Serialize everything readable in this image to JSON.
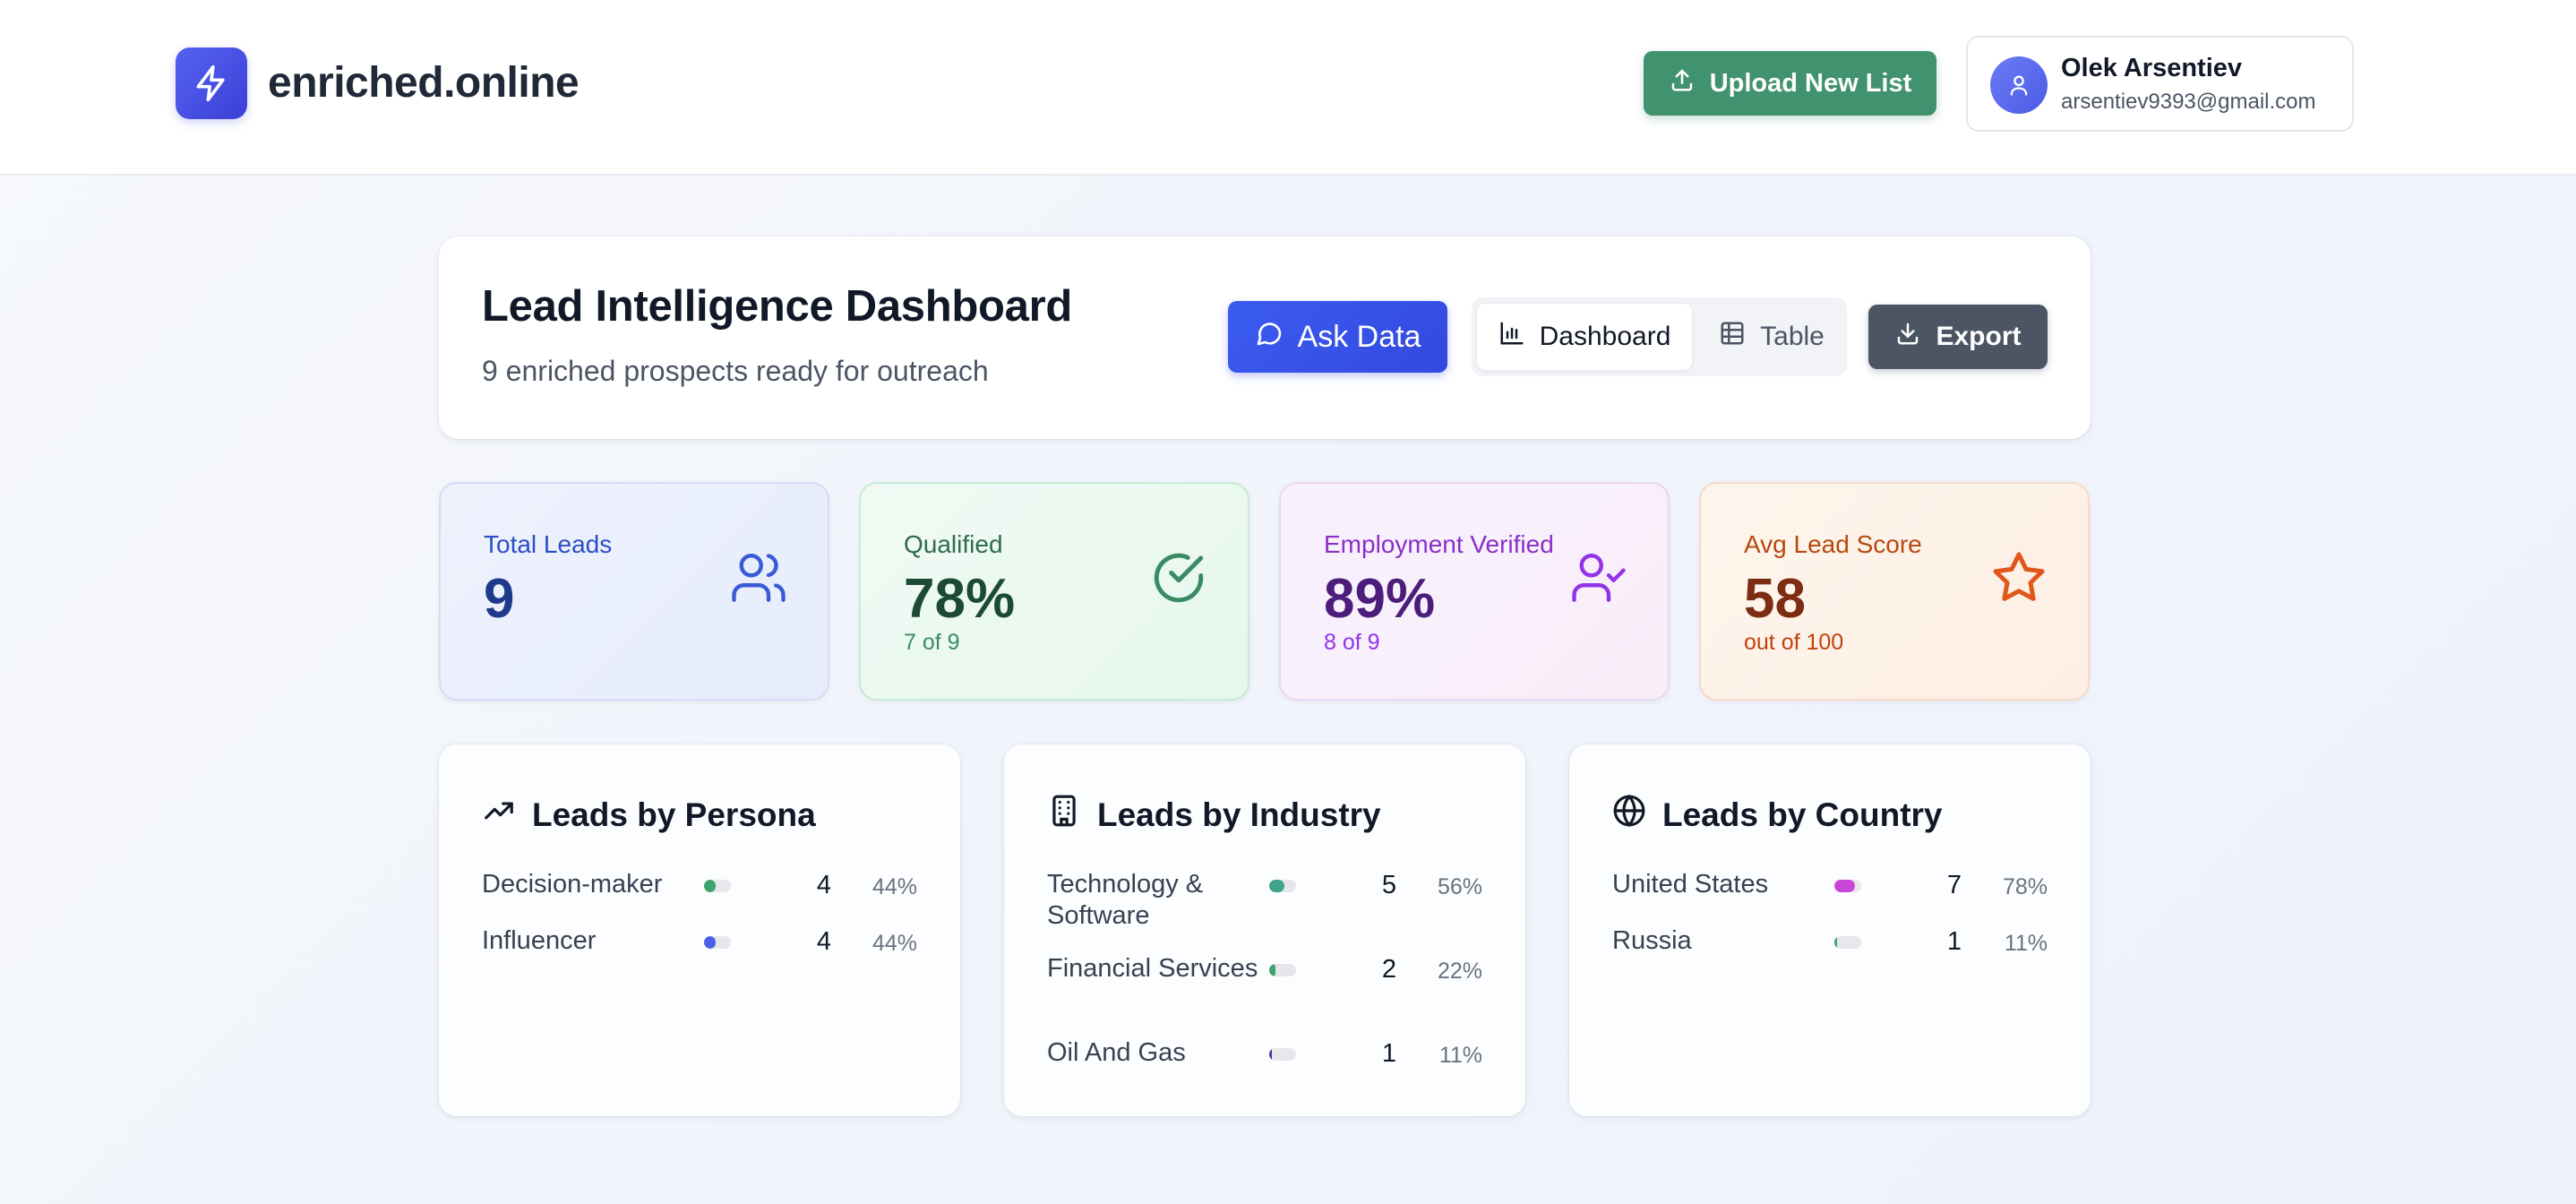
{
  "header": {
    "brand": "enriched.online",
    "upload_label": "Upload New List",
    "user": {
      "name": "Olek Arsentiev",
      "email": "arsentiev9393@gmail.com"
    }
  },
  "title_card": {
    "title": "Lead Intelligence Dashboard",
    "subtitle": "9 enriched prospects ready for outreach",
    "ask_label": "Ask Data",
    "view_toggle": {
      "dashboard_label": "Dashboard",
      "table_label": "Table",
      "selected": "Dashboard"
    },
    "export_label": "Export"
  },
  "stats": [
    {
      "label": "Total Leads",
      "value": "9",
      "sub": "",
      "icon": "users-icon"
    },
    {
      "label": "Qualified",
      "value": "78%",
      "sub": "7 of 9",
      "icon": "check-circle-icon"
    },
    {
      "label": "Employment Verified",
      "value": "89%",
      "sub": "8 of 9",
      "icon": "user-check-icon"
    },
    {
      "label": "Avg Lead Score",
      "value": "58",
      "sub": "out of 100",
      "icon": "star-icon"
    }
  ],
  "breakdowns": {
    "persona": {
      "title": "Leads by Persona",
      "icon": "trending-up-icon",
      "rows": [
        {
          "label": "Decision-maker",
          "count": "4",
          "pct": "44%",
          "fraction": 0.44,
          "color": "#3ea36d"
        },
        {
          "label": "Influencer",
          "count": "4",
          "pct": "44%",
          "fraction": 0.44,
          "color": "#4a63e6"
        }
      ]
    },
    "industry": {
      "title": "Leads by Industry",
      "icon": "building-icon",
      "rows": [
        {
          "label": "Technology & Software",
          "count": "5",
          "pct": "56%",
          "fraction": 0.56,
          "color": "#3ea38a"
        },
        {
          "label": "Financial Services",
          "count": "2",
          "pct": "22%",
          "fraction": 0.22,
          "color": "#3ea36d"
        },
        {
          "label": "Oil And Gas",
          "count": "1",
          "pct": "11%",
          "fraction": 0.11,
          "color": "#4c3aa0"
        }
      ]
    },
    "country": {
      "title": "Leads by Country",
      "icon": "globe-icon",
      "rows": [
        {
          "label": "United States",
          "count": "7",
          "pct": "78%",
          "fraction": 0.78,
          "color": "#c745d9"
        },
        {
          "label": "Russia",
          "count": "1",
          "pct": "11%",
          "fraction": 0.11,
          "color": "#3ea36d"
        }
      ]
    }
  }
}
